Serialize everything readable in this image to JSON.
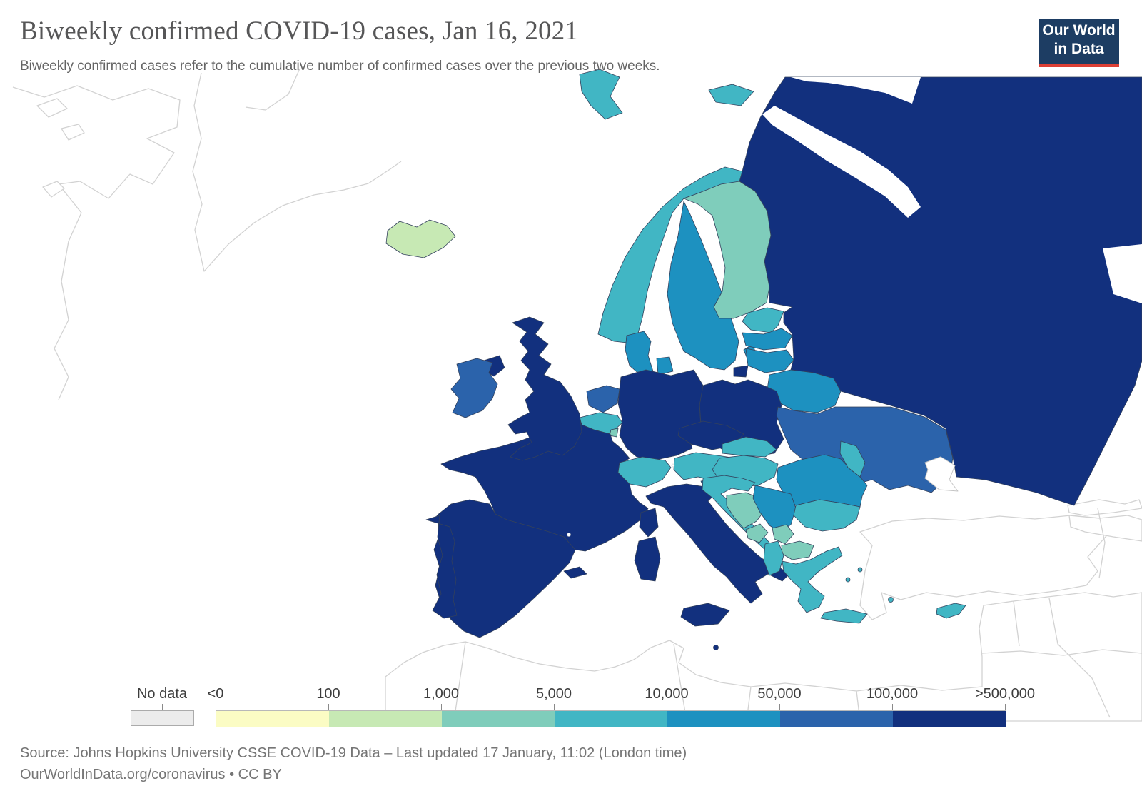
{
  "header": {
    "title": "Biweekly confirmed COVID-19 cases, Jan 16, 2021",
    "subtitle": "Biweekly confirmed cases refer to the cumulative number of confirmed cases over the previous two weeks."
  },
  "logo": {
    "line1": "Our World",
    "line2": "in Data",
    "bg_color": "#1d3d63",
    "accent_color": "#dc3f35"
  },
  "legend": {
    "no_data_label": "No data",
    "no_data_color": "#ececec",
    "tick_labels": [
      "<0",
      "100",
      "1,000",
      "5,000",
      "10,000",
      "50,000",
      "100,000",
      ">500,000"
    ],
    "bins": [
      {
        "range": "<0–100",
        "color": "#fbfcc4"
      },
      {
        "range": "100–1,000",
        "color": "#c7e9b4"
      },
      {
        "range": "1,000–5,000",
        "color": "#7fcdbb"
      },
      {
        "range": "5,000–10,000",
        "color": "#41b6c4"
      },
      {
        "range": "10,000–50,000",
        "color": "#1d91c0"
      },
      {
        "range": "50,000–100,000",
        "color": "#2b63ab"
      },
      {
        "range": "100,000–>500,000",
        "color": "#12307e"
      }
    ]
  },
  "footer": {
    "source_line1": "Source: Johns Hopkins University CSSE COVID-19 Data – Last updated 17 January, 11:02 (London time)",
    "source_line2": "OurWorldInData.org/coronavirus • CC BY"
  },
  "map": {
    "selected_border_color": "#33415c",
    "unselected_border_color": "#d2d2d2",
    "sea_color": "#ffffff",
    "countries": [
      {
        "id": "iceland",
        "name": "Iceland",
        "bin": "100–1,000",
        "color": "#c7e9b4"
      },
      {
        "id": "svalbard",
        "name": "Svalbard (Norway)",
        "bin": "5,000–10,000",
        "color": "#41b6c4"
      },
      {
        "id": "norway",
        "name": "Norway",
        "bin": "5,000–10,000",
        "color": "#41b6c4"
      },
      {
        "id": "sweden",
        "name": "Sweden",
        "bin": "10,000–50,000",
        "color": "#1d91c0"
      },
      {
        "id": "finland",
        "name": "Finland",
        "bin": "1,000–5,000",
        "color": "#7fcdbb"
      },
      {
        "id": "denmark",
        "name": "Denmark",
        "bin": "10,000–50,000",
        "color": "#1d91c0"
      },
      {
        "id": "estonia",
        "name": "Estonia",
        "bin": "5,000–10,000",
        "color": "#41b6c4"
      },
      {
        "id": "latvia",
        "name": "Latvia",
        "bin": "10,000–50,000",
        "color": "#1d91c0"
      },
      {
        "id": "lithuania",
        "name": "Lithuania",
        "bin": "10,000–50,000",
        "color": "#1d91c0"
      },
      {
        "id": "russia",
        "name": "Russia",
        "bin": "100,000–>500,000",
        "color": "#12307e"
      },
      {
        "id": "belarus",
        "name": "Belarus",
        "bin": "10,000–50,000",
        "color": "#1d91c0"
      },
      {
        "id": "ukraine",
        "name": "Ukraine",
        "bin": "50,000–100,000",
        "color": "#2b63ab"
      },
      {
        "id": "moldova",
        "name": "Moldova",
        "bin": "5,000–10,000",
        "color": "#41b6c4"
      },
      {
        "id": "poland",
        "name": "Poland",
        "bin": "100,000–>500,000",
        "color": "#12307e"
      },
      {
        "id": "germany",
        "name": "Germany",
        "bin": "100,000–>500,000",
        "color": "#12307e"
      },
      {
        "id": "netherlands",
        "name": "Netherlands",
        "bin": "50,000–100,000",
        "color": "#2b63ab"
      },
      {
        "id": "belgium",
        "name": "Belgium",
        "bin": "5,000–10,000",
        "color": "#41b6c4"
      },
      {
        "id": "luxembourg",
        "name": "Luxembourg",
        "bin": "1,000–5,000",
        "color": "#7fcdbb"
      },
      {
        "id": "france",
        "name": "France",
        "bin": "100,000–>500,000",
        "color": "#12307e"
      },
      {
        "id": "united-kingdom",
        "name": "United Kingdom",
        "bin": "100,000–>500,000",
        "color": "#12307e"
      },
      {
        "id": "ireland",
        "name": "Ireland",
        "bin": "50,000–100,000",
        "color": "#2b63ab"
      },
      {
        "id": "spain",
        "name": "Spain",
        "bin": "100,000–>500,000",
        "color": "#12307e"
      },
      {
        "id": "portugal",
        "name": "Portugal",
        "bin": "100,000–>500,000",
        "color": "#12307e"
      },
      {
        "id": "italy",
        "name": "Italy",
        "bin": "100,000–>500,000",
        "color": "#12307e"
      },
      {
        "id": "switzerland",
        "name": "Switzerland",
        "bin": "5,000–10,000",
        "color": "#41b6c4"
      },
      {
        "id": "austria",
        "name": "Austria",
        "bin": "5,000–10,000",
        "color": "#41b6c4"
      },
      {
        "id": "czechia",
        "name": "Czechia",
        "bin": "100,000–>500,000",
        "color": "#12307e"
      },
      {
        "id": "slovakia",
        "name": "Slovakia",
        "bin": "5,000–10,000",
        "color": "#41b6c4"
      },
      {
        "id": "hungary",
        "name": "Hungary",
        "bin": "5,000–10,000",
        "color": "#41b6c4"
      },
      {
        "id": "slovenia",
        "name": "Slovenia",
        "bin": "10,000–50,000",
        "color": "#1d91c0"
      },
      {
        "id": "croatia",
        "name": "Croatia",
        "bin": "5,000–10,000",
        "color": "#41b6c4"
      },
      {
        "id": "bosnia",
        "name": "Bosnia and Herzegovina",
        "bin": "1,000–5,000",
        "color": "#7fcdbb"
      },
      {
        "id": "serbia",
        "name": "Serbia",
        "bin": "10,000–50,000",
        "color": "#1d91c0"
      },
      {
        "id": "montenegro",
        "name": "Montenegro",
        "bin": "1,000–5,000",
        "color": "#7fcdbb"
      },
      {
        "id": "kosovo",
        "name": "Kosovo",
        "bin": "1,000–5,000",
        "color": "#7fcdbb"
      },
      {
        "id": "north-macedonia",
        "name": "North Macedonia",
        "bin": "1,000–5,000",
        "color": "#7fcdbb"
      },
      {
        "id": "albania",
        "name": "Albania",
        "bin": "5,000–10,000",
        "color": "#41b6c4"
      },
      {
        "id": "romania",
        "name": "Romania",
        "bin": "10,000–50,000",
        "color": "#1d91c0"
      },
      {
        "id": "bulgaria",
        "name": "Bulgaria",
        "bin": "5,000–10,000",
        "color": "#41b6c4"
      },
      {
        "id": "greece",
        "name": "Greece",
        "bin": "5,000–10,000",
        "color": "#41b6c4"
      },
      {
        "id": "cyprus",
        "name": "Cyprus",
        "bin": "5,000–10,000",
        "color": "#41b6c4"
      },
      {
        "id": "malta",
        "name": "Malta",
        "bin": "100,000–>500,000",
        "color": "#12307e"
      }
    ]
  }
}
